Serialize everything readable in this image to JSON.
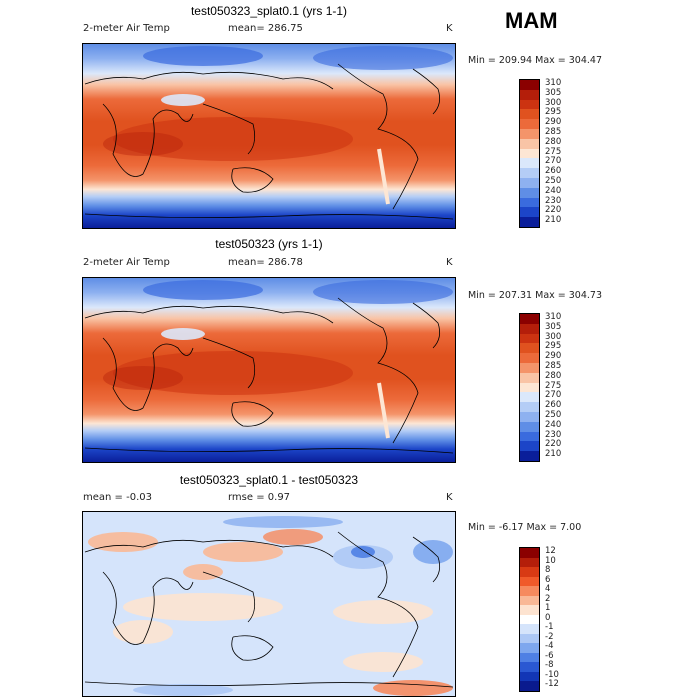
{
  "season": "MAM",
  "panels": [
    {
      "title": "test050323_splat0.1 (yrs 1-1)",
      "variable": "2-meter Air Temp",
      "mean_label": "mean= 286.75",
      "unit": "K",
      "minmax": "Min = 209.94 Max = 304.47",
      "colorbar_ticks": [
        "310",
        "305",
        "300",
        "295",
        "290",
        "285",
        "280",
        "275",
        "270",
        "260",
        "250",
        "240",
        "230",
        "220",
        "210"
      ]
    },
    {
      "title": "test050323 (yrs 1-1)",
      "variable": "2-meter Air Temp",
      "mean_label": "mean= 286.78",
      "unit": "K",
      "minmax": "Min = 207.31 Max = 304.73",
      "colorbar_ticks": [
        "310",
        "305",
        "300",
        "295",
        "290",
        "285",
        "280",
        "275",
        "270",
        "260",
        "250",
        "240",
        "230",
        "220",
        "210"
      ]
    },
    {
      "title": "test050323_splat0.1 - test050323",
      "mean_label": "mean =  -0.03",
      "rmse_label": "rmse =    0.97",
      "unit": "K",
      "minmax": "Min =  -6.17 Max =    7.00",
      "colorbar_ticks": [
        "12",
        "10",
        "8",
        "6",
        "4",
        "2",
        "1",
        "0",
        "-1",
        "-2",
        "-4",
        "-6",
        "-8",
        "-10",
        "-12"
      ]
    }
  ],
  "chart_data": [
    {
      "type": "heatmap",
      "title": "test050323_splat0.1 (yrs 1-1)",
      "variable": "2-meter Air Temp",
      "units": "K",
      "mean": 286.75,
      "min": 209.94,
      "max": 304.47,
      "levels": [
        210,
        220,
        230,
        240,
        250,
        260,
        270,
        275,
        280,
        285,
        290,
        295,
        300,
        305,
        310
      ]
    },
    {
      "type": "heatmap",
      "title": "test050323 (yrs 1-1)",
      "variable": "2-meter Air Temp",
      "units": "K",
      "mean": 286.78,
      "min": 207.31,
      "max": 304.73,
      "levels": [
        210,
        220,
        230,
        240,
        250,
        260,
        270,
        275,
        280,
        285,
        290,
        295,
        300,
        305,
        310
      ]
    },
    {
      "type": "heatmap",
      "title": "test050323_splat0.1 - test050323",
      "units": "K",
      "mean": -0.03,
      "rmse": 0.97,
      "min": -6.17,
      "max": 7.0,
      "levels": [
        -12,
        -10,
        -8,
        -6,
        -4,
        -2,
        -1,
        0,
        1,
        2,
        4,
        6,
        8,
        10,
        12
      ]
    }
  ],
  "colors": {
    "temp_scale": [
      "#8b0000",
      "#b41e0a",
      "#cc3311",
      "#e0521f",
      "#ec6a3a",
      "#f4946a",
      "#f9c4a6",
      "#fde6d4",
      "#dbe8fb",
      "#b4cdf6",
      "#8eb1f0",
      "#5f8ee6",
      "#3a6bde",
      "#1c45c8",
      "#0a1e9a"
    ],
    "diff_scale": [
      "#8b0000",
      "#b41e0a",
      "#d83a14",
      "#f05a2a",
      "#f68a5e",
      "#f9b896",
      "#fde3d0",
      "#ffffff",
      "#d5e4fb",
      "#adc8f5",
      "#7ea7ee",
      "#4f80e4",
      "#2a58d2",
      "#1236b6",
      "#0a1a8e"
    ]
  }
}
